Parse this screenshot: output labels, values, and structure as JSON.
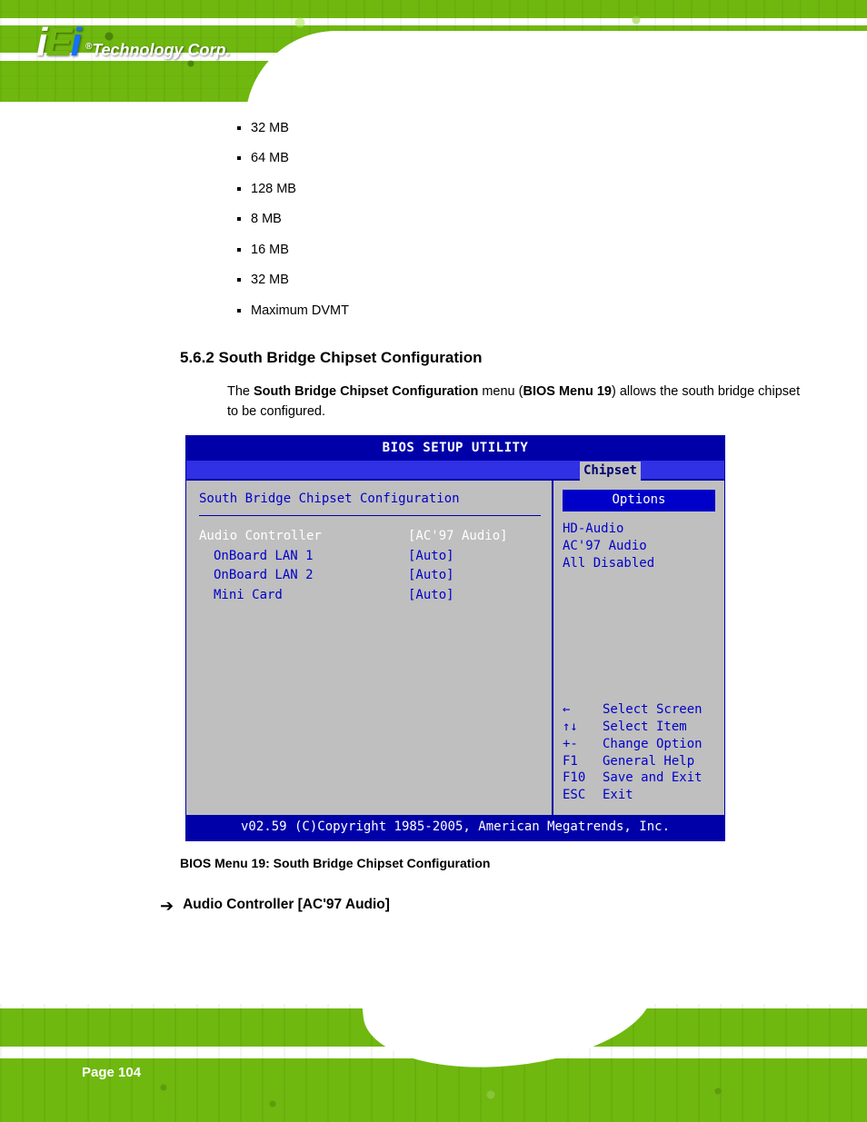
{
  "brand": {
    "logo_main": "iEi",
    "logo_tag_r": "®",
    "logo_tag": "Technology Corp."
  },
  "list": {
    "items": [
      "32 MB",
      "64 MB",
      "128 MB",
      "8 MB",
      "16 MB",
      "32 MB",
      "Maximum DVMT"
    ]
  },
  "section": {
    "number": "5.6.2",
    "title": "South Bridge Chipset Configuration",
    "para_prefix": "The ",
    "para_strong": "South Bridge Chipset Configuration",
    "para_mid": " menu (",
    "para_ref": "BIOS Menu 19",
    "para_suffix": ") allows the south bridge chipset to be configured."
  },
  "bios": {
    "title": "BIOS SETUP UTILITY",
    "tab": "Chipset",
    "panel_heading": "South Bridge Chipset Configuration",
    "rows": [
      {
        "label": "Audio Controller",
        "value": "[AC'97 Audio]",
        "selected": true,
        "indent": false
      },
      {
        "label": "OnBoard LAN 1",
        "value": "[Auto]",
        "selected": false,
        "indent": true
      },
      {
        "label": "OnBoard LAN 2",
        "value": "[Auto]",
        "selected": false,
        "indent": true
      },
      {
        "label": "Mini Card",
        "value": "[Auto]",
        "selected": false,
        "indent": true
      }
    ],
    "options_header": "Options",
    "options": [
      "HD-Audio",
      "AC'97 Audio",
      "All Disabled"
    ],
    "nav": [
      {
        "key": "←",
        "text": "Select Screen"
      },
      {
        "key": "↑↓",
        "text": "Select Item"
      },
      {
        "key": "+-",
        "text": "Change Option"
      },
      {
        "key": "F1",
        "text": "General Help"
      },
      {
        "key": "F10",
        "text": "Save and Exit"
      },
      {
        "key": "ESC",
        "text": "Exit"
      }
    ],
    "footer": "v02.59 (C)Copyright 1985-2005, American Megatrends, Inc."
  },
  "figure_caption": "BIOS Menu 19: South Bridge Chipset Configuration",
  "arrow_item": {
    "glyph": "➔",
    "heading": "Audio Controller [AC'97 Audio]"
  },
  "page_number": "Page 104"
}
